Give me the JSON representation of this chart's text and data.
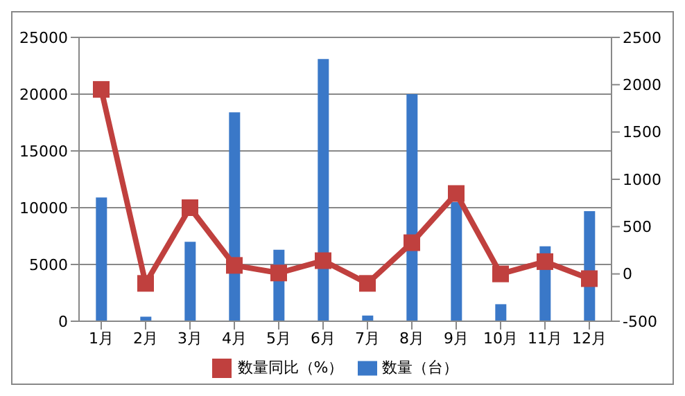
{
  "chart_data": {
    "type": "bar",
    "categories": [
      "1月",
      "2月",
      "3月",
      "4月",
      "5月",
      "6月",
      "7月",
      "8月",
      "9月",
      "10月",
      "11月",
      "12月"
    ],
    "series": [
      {
        "name": "数量（台）",
        "color": "#3a78c8",
        "values": [
          10900,
          400,
          7000,
          18400,
          6300,
          23100,
          500,
          20000,
          10500,
          1500,
          6600,
          9700
        ]
      },
      {
        "name": "数量同比（%）",
        "type": "line",
        "axis": "y2",
        "color": "#c0403e",
        "marker": "square",
        "values": [
          1950,
          -100,
          700,
          90,
          10,
          140,
          -100,
          330,
          850,
          0,
          130,
          -50
        ]
      }
    ],
    "ylim": [
      0,
      25000
    ],
    "yticks": [
      0,
      5000,
      10000,
      15000,
      20000,
      25000
    ],
    "y2lim": [
      -500,
      2500
    ],
    "y2ticks": [
      -500,
      0,
      500,
      1000,
      1500,
      2000,
      2500
    ],
    "grid": "y",
    "legend": "bottom"
  }
}
